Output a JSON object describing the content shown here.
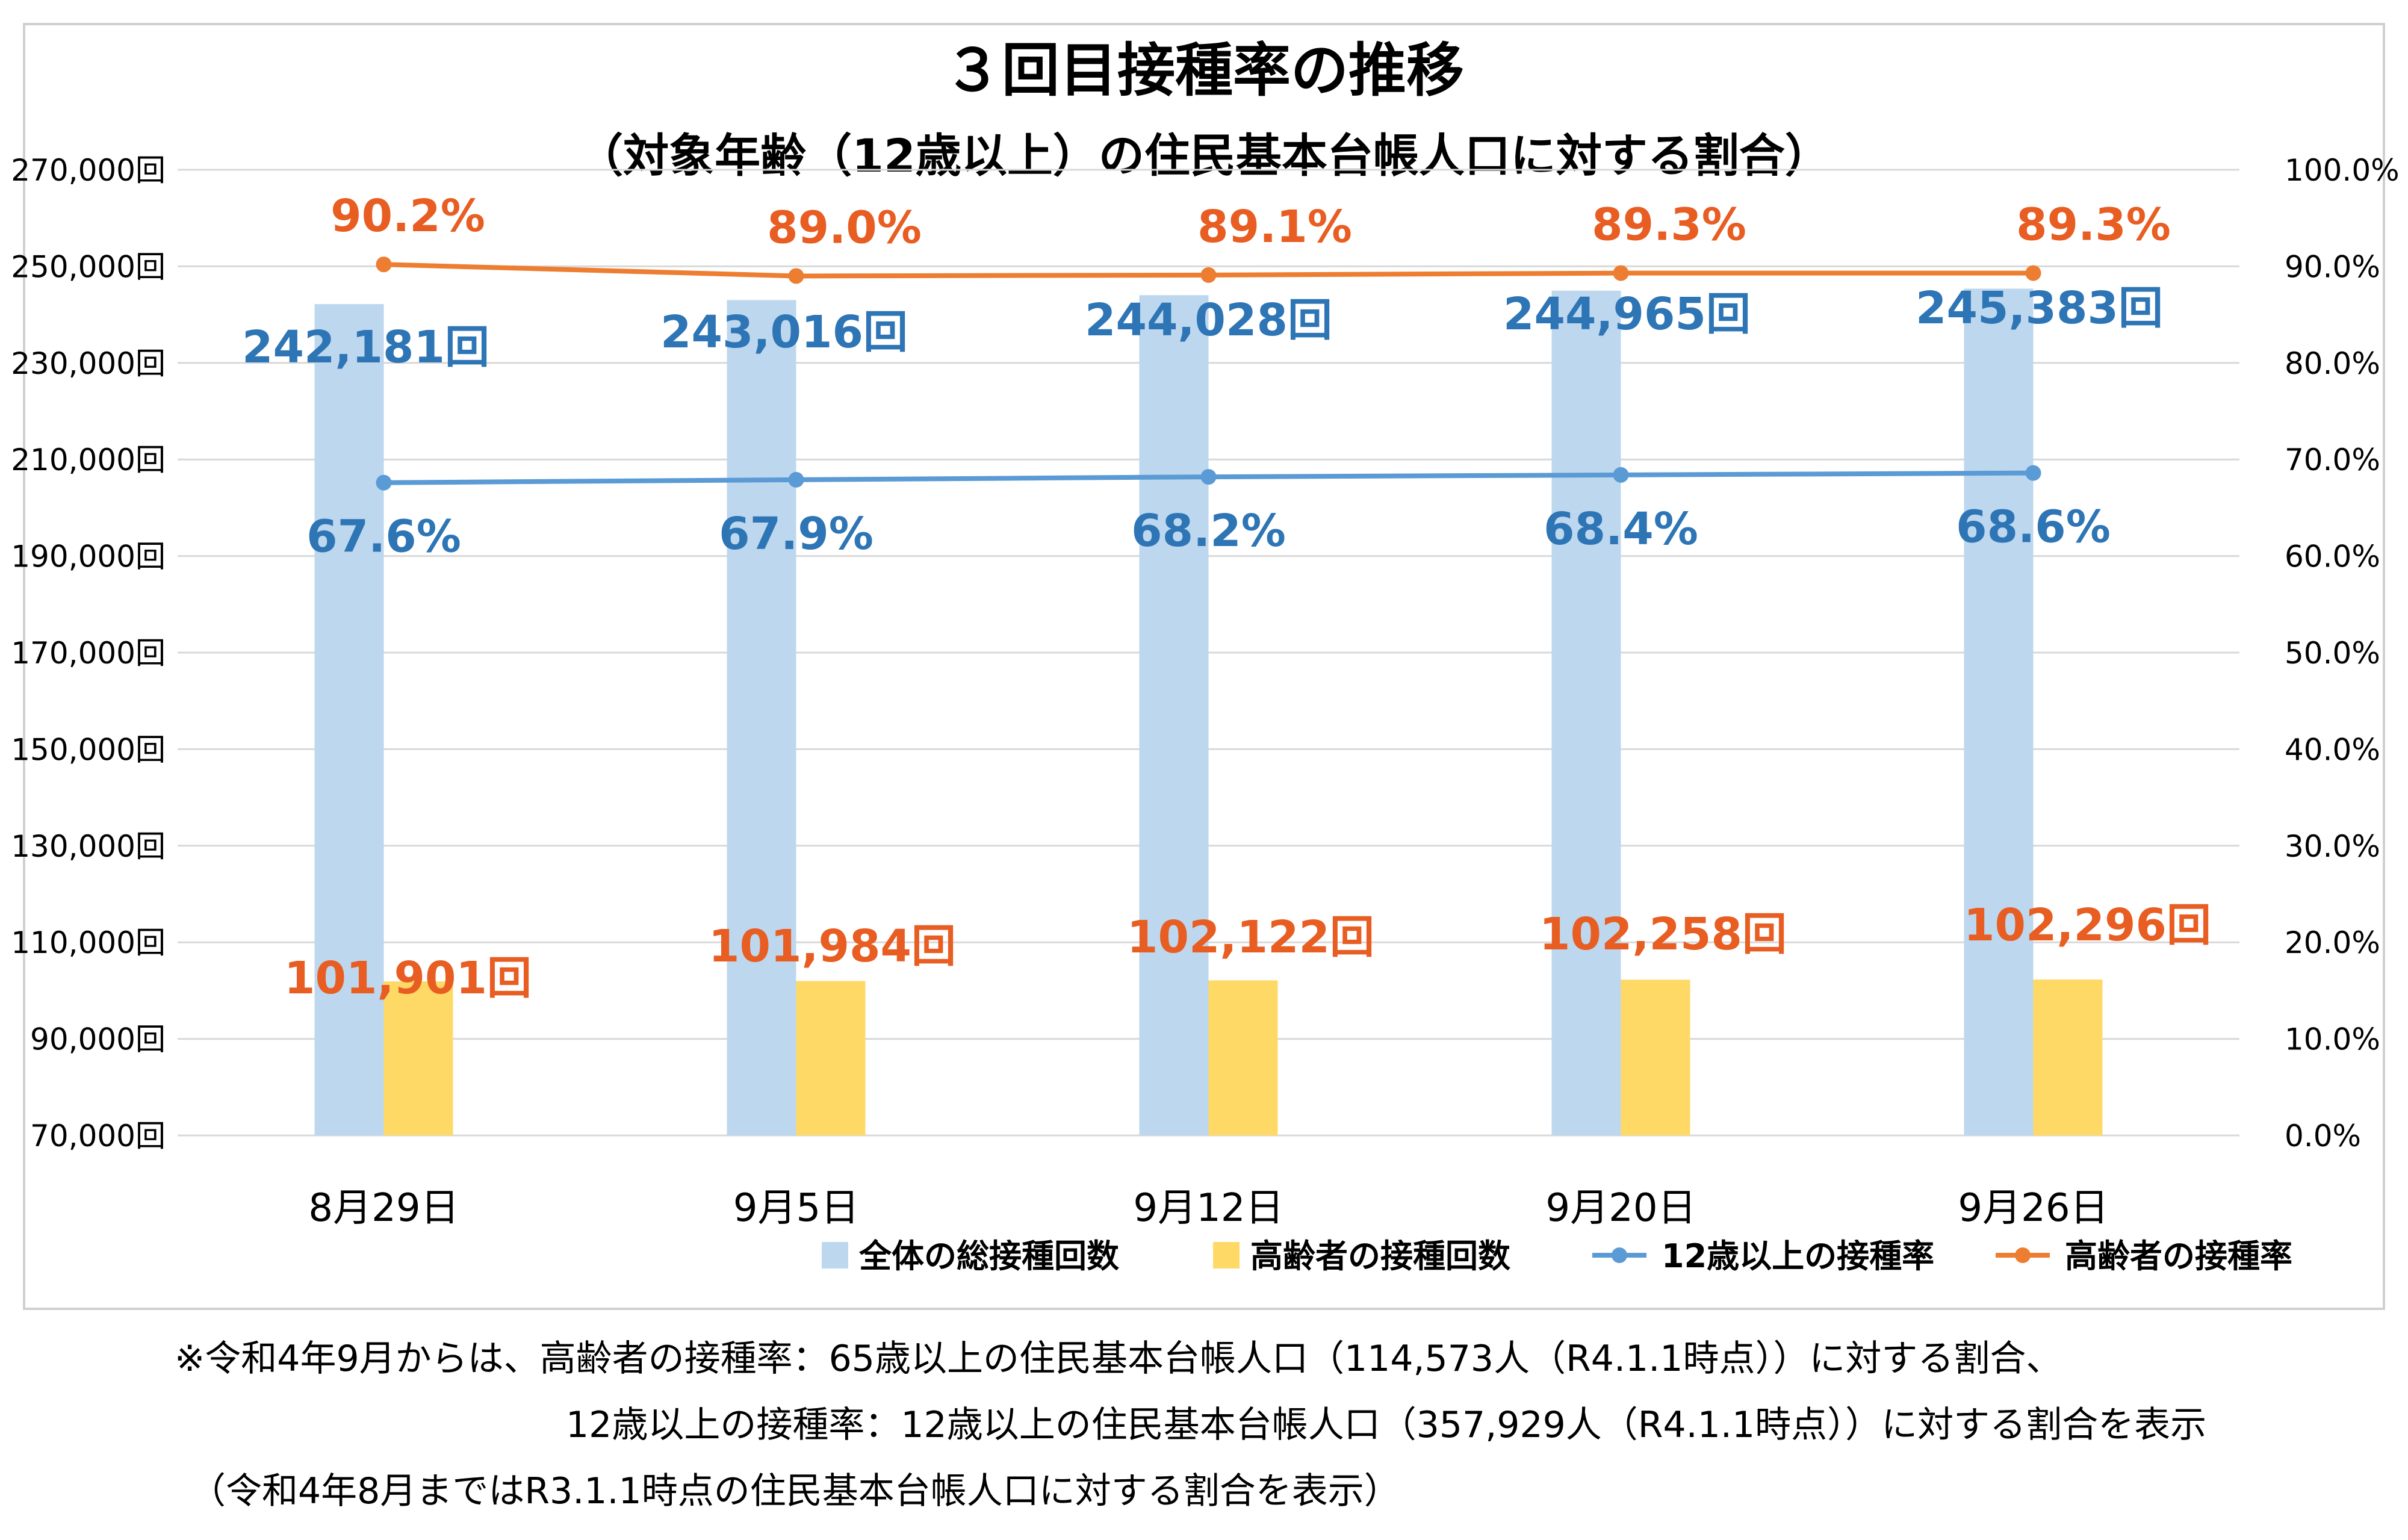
{
  "chart_data": {
    "type": "bar",
    "title": "３回目接種率の推移",
    "subtitle": "（対象年齢（12歳以上）の住民基本台帳人口に対する割合）",
    "categories": [
      "8月29日",
      "9月5日",
      "9月12日",
      "9月20日",
      "9月26日"
    ],
    "y_left": {
      "ylim": [
        70000,
        270000
      ],
      "ticks": [
        "70,000回",
        "90,000回",
        "110,000回",
        "130,000回",
        "150,000回",
        "170,000回",
        "190,000回",
        "210,000回",
        "230,000回",
        "250,000回",
        "270,000回"
      ]
    },
    "y_right": {
      "ylim": [
        0,
        100
      ],
      "ticks": [
        "0.0%",
        "10.0%",
        "20.0%",
        "30.0%",
        "40.0%",
        "50.0%",
        "60.0%",
        "70.0%",
        "80.0%",
        "90.0%",
        "100.0%"
      ]
    },
    "grid": true,
    "legend_position": "bottom-right",
    "series": [
      {
        "name": "全体の総接種回数",
        "kind": "bar",
        "axis": "left",
        "color": "#bdd7ee",
        "label_color": "#2e75b6",
        "values": [
          242181,
          243016,
          244028,
          244965,
          245383
        ],
        "labels": [
          "242,181回",
          "243,016回",
          "244,028回",
          "244,965回",
          "245,383回"
        ]
      },
      {
        "name": "高齢者の接種回数",
        "kind": "bar",
        "axis": "left",
        "color": "#ffd966",
        "label_color": "#e85d22",
        "values": [
          101901,
          101984,
          102122,
          102258,
          102296
        ],
        "labels": [
          "101,901回",
          "101,984回",
          "102,122回",
          "102,258回",
          "102,296回"
        ]
      },
      {
        "name": "12歳以上の接種率",
        "kind": "line",
        "axis": "right",
        "color": "#5b9bd5",
        "label_color": "#2e75b6",
        "values": [
          67.6,
          67.9,
          68.2,
          68.4,
          68.6
        ],
        "labels": [
          "67.6%",
          "67.9%",
          "68.2%",
          "68.4%",
          "68.6%"
        ]
      },
      {
        "name": "高齢者の接種率",
        "kind": "line",
        "axis": "right",
        "color": "#ed7d31",
        "label_color": "#e85d22",
        "values": [
          90.2,
          89.0,
          89.1,
          89.3,
          89.3
        ],
        "labels": [
          "90.2%",
          "89.0%",
          "89.1%",
          "89.3%",
          "89.3%"
        ]
      }
    ]
  },
  "notes": {
    "line1": "※令和4年9月からは、高齢者の接種率：65歳以上の住民基本台帳人口（114,573人（R4.1.1時点））に対する割合、",
    "line2": "12歳以上の接種率：12歳以上の住民基本台帳人口（357,929人（R4.1.1時点））に対する割合を表示",
    "line3": "（令和4年8月まではR3.1.1時点の住民基本台帳人口に対する割合を表示）"
  }
}
